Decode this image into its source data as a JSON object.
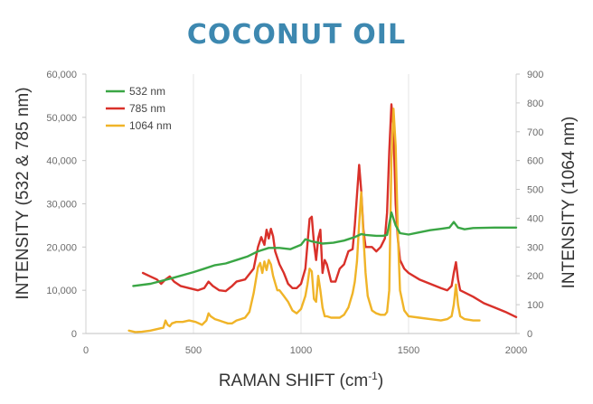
{
  "chart_data": {
    "type": "line",
    "title": "COCONUT OIL",
    "xlabel": "RAMAN SHIFT (cm",
    "xlabel_sup": "-1",
    "xlabel_end": ")",
    "ylabel_left": "INTENSITY (532 & 785 nm)",
    "ylabel_right": "INTENSITY (1064 nm)",
    "xlim": [
      0,
      2000
    ],
    "ylim_left": [
      0,
      60000
    ],
    "ylim_right": [
      0,
      900
    ],
    "x_ticks": [
      "0",
      "500",
      "1000",
      "1500",
      "2000"
    ],
    "x_tick_values": [
      0,
      500,
      1000,
      1500,
      2000
    ],
    "y_left_ticks": [
      "0",
      "10,000",
      "20,000",
      "30,000",
      "40,000",
      "50,000",
      "60,000"
    ],
    "y_left_values": [
      0,
      10000,
      20000,
      30000,
      40000,
      50000,
      60000
    ],
    "y_right_ticks": [
      "0",
      "100",
      "200",
      "300",
      "400",
      "500",
      "600",
      "700",
      "800",
      "900"
    ],
    "y_right_values": [
      0,
      100,
      200,
      300,
      400,
      500,
      600,
      700,
      800,
      900
    ],
    "grid": "vertical",
    "legend_position": "top-left",
    "title_color": "#3d88b0",
    "series": [
      {
        "name": "532 nm",
        "color": "#3aa645",
        "axis": "left",
        "x": [
          220,
          300,
          400,
          500,
          550,
          600,
          650,
          700,
          750,
          800,
          850,
          900,
          950,
          1000,
          1020,
          1050,
          1100,
          1150,
          1200,
          1250,
          1280,
          1300,
          1350,
          1380,
          1400,
          1420,
          1440,
          1460,
          1500,
          1550,
          1600,
          1650,
          1690,
          1710,
          1730,
          1760,
          1800,
          1900,
          2000
        ],
        "y": [
          11000,
          11500,
          12800,
          14200,
          15000,
          15800,
          16200,
          17000,
          17800,
          19000,
          19800,
          19800,
          19500,
          20500,
          21800,
          21300,
          20800,
          21000,
          21500,
          22300,
          23000,
          22800,
          22600,
          22600,
          22800,
          28000,
          25000,
          23200,
          22900,
          23400,
          23900,
          24200,
          24500,
          25800,
          24500,
          24100,
          24400,
          24500,
          24500
        ]
      },
      {
        "name": "785 nm",
        "color": "#d9312a",
        "axis": "left",
        "x": [
          265,
          300,
          330,
          350,
          370,
          390,
          410,
          440,
          480,
          520,
          550,
          570,
          590,
          620,
          650,
          680,
          700,
          740,
          780,
          800,
          815,
          830,
          840,
          850,
          860,
          870,
          880,
          900,
          920,
          940,
          960,
          980,
          1000,
          1020,
          1040,
          1050,
          1060,
          1070,
          1080,
          1090,
          1100,
          1110,
          1120,
          1140,
          1160,
          1180,
          1200,
          1220,
          1240,
          1250,
          1260,
          1270,
          1280,
          1290,
          1300,
          1310,
          1330,
          1350,
          1370,
          1390,
          1400,
          1410,
          1420,
          1430,
          1440,
          1450,
          1460,
          1480,
          1500,
          1550,
          1600,
          1650,
          1680,
          1700,
          1710,
          1720,
          1730,
          1740,
          1760,
          1800,
          1850,
          1900,
          1950,
          2000
        ],
        "y": [
          14000,
          13200,
          12500,
          11500,
          12500,
          13200,
          12000,
          11000,
          10500,
          10000,
          10500,
          12000,
          11000,
          10000,
          9800,
          11000,
          12000,
          12500,
          15000,
          20000,
          22300,
          20500,
          24000,
          22000,
          24200,
          22500,
          19000,
          16000,
          14000,
          11500,
          10500,
          10500,
          11500,
          15000,
          26500,
          27000,
          21000,
          17000,
          22000,
          24000,
          14000,
          17000,
          16000,
          12000,
          12000,
          15000,
          16000,
          19000,
          19500,
          25000,
          32000,
          39000,
          33000,
          24000,
          20000,
          20000,
          20000,
          19000,
          20000,
          22000,
          28000,
          42000,
          53000,
          47000,
          30000,
          22000,
          17000,
          15000,
          14000,
          12500,
          11500,
          10500,
          10000,
          11000,
          14000,
          16500,
          12500,
          10000,
          9500,
          8500,
          7000,
          6000,
          5000,
          3800
        ]
      },
      {
        "name": "1064 nm",
        "color": "#f0b428",
        "axis": "right",
        "x": [
          200,
          230,
          260,
          300,
          330,
          360,
          370,
          380,
          390,
          400,
          420,
          450,
          480,
          510,
          540,
          560,
          570,
          580,
          590,
          600,
          620,
          640,
          660,
          680,
          700,
          720,
          740,
          760,
          780,
          800,
          810,
          820,
          830,
          840,
          850,
          860,
          870,
          880,
          890,
          900,
          920,
          940,
          960,
          980,
          1000,
          1020,
          1030,
          1040,
          1050,
          1060,
          1070,
          1080,
          1090,
          1100,
          1110,
          1120,
          1140,
          1160,
          1180,
          1200,
          1220,
          1240,
          1250,
          1260,
          1270,
          1280,
          1290,
          1300,
          1310,
          1330,
          1350,
          1370,
          1390,
          1400,
          1410,
          1420,
          1430,
          1440,
          1450,
          1460,
          1480,
          1500,
          1550,
          1600,
          1650,
          1680,
          1700,
          1710,
          1720,
          1730,
          1740,
          1760,
          1800,
          1830
        ],
        "y": [
          10,
          5,
          6,
          10,
          15,
          20,
          45,
          30,
          25,
          35,
          40,
          40,
          45,
          40,
          30,
          45,
          70,
          60,
          55,
          50,
          45,
          40,
          35,
          35,
          45,
          50,
          55,
          75,
          140,
          230,
          245,
          210,
          250,
          220,
          255,
          240,
          200,
          175,
          150,
          150,
          130,
          110,
          80,
          70,
          85,
          130,
          170,
          225,
          215,
          120,
          110,
          200,
          150,
          90,
          60,
          60,
          55,
          55,
          55,
          65,
          90,
          140,
          180,
          250,
          380,
          490,
          340,
          210,
          130,
          80,
          70,
          65,
          65,
          75,
          150,
          600,
          780,
          650,
          350,
          150,
          80,
          60,
          55,
          50,
          45,
          50,
          60,
          100,
          170,
          100,
          60,
          50,
          45,
          45
        ]
      }
    ]
  }
}
